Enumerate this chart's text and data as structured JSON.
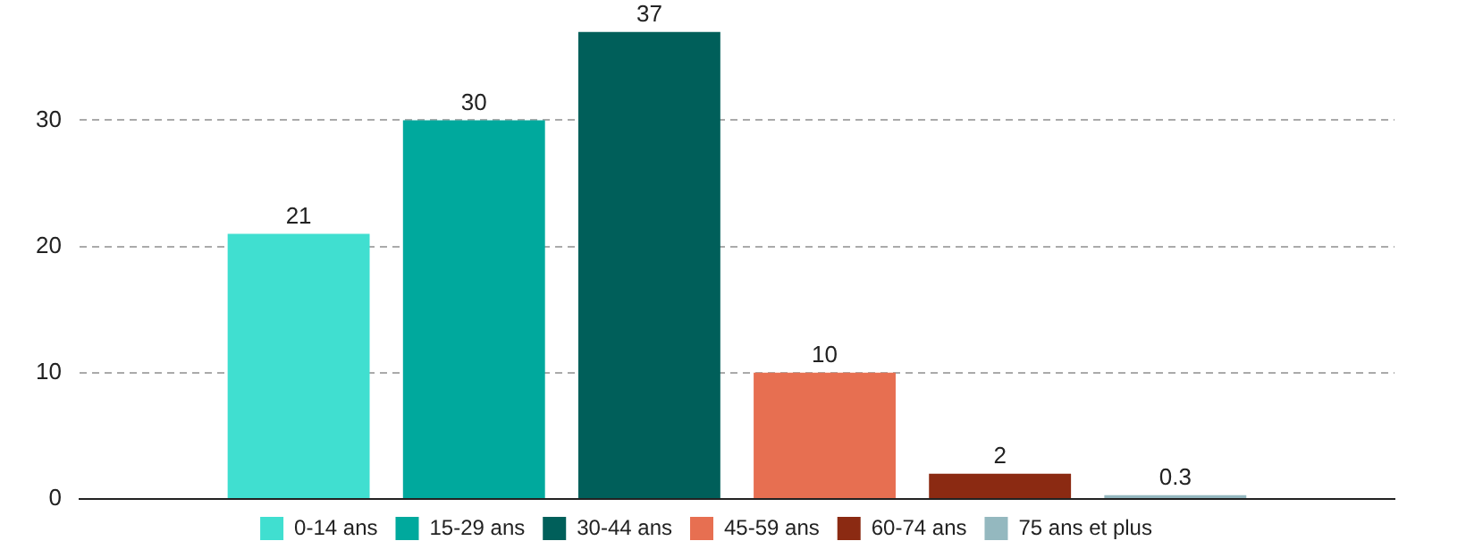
{
  "chart_data": {
    "type": "bar",
    "categories": [
      null
    ],
    "series": [
      {
        "name": "0-14 ans",
        "color": "#40dfd0",
        "values": [
          21
        ]
      },
      {
        "name": "15-29 ans",
        "color": "#00a99d",
        "values": [
          30
        ]
      },
      {
        "name": "30-44 ans",
        "color": "#005f5a",
        "values": [
          37
        ]
      },
      {
        "name": "45-59 ans",
        "color": "#e76f51",
        "values": [
          10
        ]
      },
      {
        "name": "60-74 ans",
        "color": "#8b2a12",
        "values": [
          2
        ]
      },
      {
        "name": "75 ans et plus",
        "color": "#94b8bf",
        "values": [
          0.3
        ]
      }
    ],
    "ylim": [
      0,
      37
    ],
    "yticks": [
      0,
      10,
      20,
      30
    ],
    "grid": "y",
    "legend": "bottom",
    "data_labels": true
  }
}
